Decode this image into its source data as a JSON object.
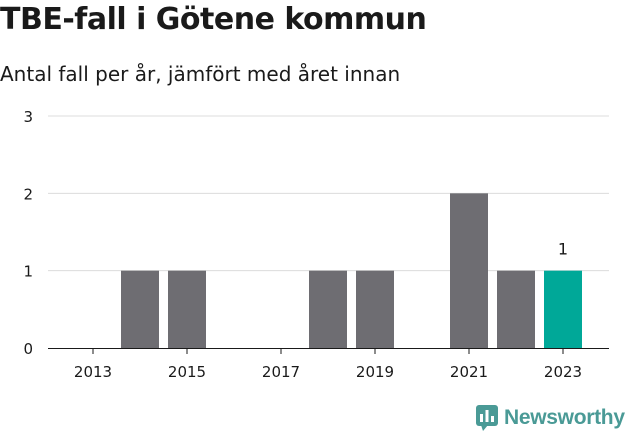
{
  "header": {
    "title": "TBE-fall i Götene kommun",
    "subtitle": "Antal fall per år, jämfört med året innan"
  },
  "brand": {
    "name": "Newsworthy",
    "icon": "newsworthy-logo-icon",
    "color": "#4a9a96"
  },
  "chart_data": {
    "type": "bar",
    "title": "TBE-fall i Götene kommun",
    "subtitle": "Antal fall per år, jämfört med året innan",
    "xlabel": "",
    "ylabel": "",
    "categories": [
      "2013",
      "2014",
      "2015",
      "2016",
      "2017",
      "2018",
      "2019",
      "2020",
      "2021",
      "2022",
      "2023"
    ],
    "values": [
      0,
      1,
      1,
      0,
      0,
      1,
      1,
      0,
      2,
      1,
      1
    ],
    "x_tick_labels": [
      "2013",
      "2015",
      "2017",
      "2019",
      "2021",
      "2023"
    ],
    "y_ticks": [
      0,
      1,
      2,
      3
    ],
    "ylim": [
      0,
      3
    ],
    "grid": true,
    "legend": "none",
    "highlight_category": "2023",
    "data_labels": [
      {
        "category": "2023",
        "text": "1"
      }
    ],
    "colors": {
      "bar": "#6e6d72",
      "highlight": "#00a898",
      "grid": "#dcdcdc",
      "axis": "#1a1a1a"
    }
  }
}
